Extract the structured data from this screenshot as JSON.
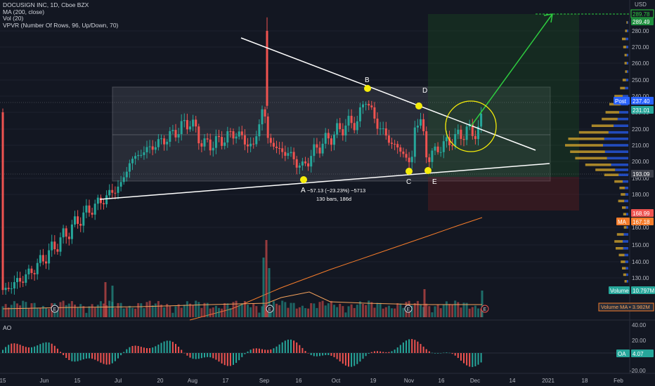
{
  "legend": {
    "title": "DOCUSIGN INC, 1D, Cboe BZX",
    "ma": "MA (200, close)",
    "vol": "Vol (20)",
    "vpvr": "VPVR (Number Of Rows, 96, Up/Down, 70)"
  },
  "currency": "USD",
  "ao_title": "AO",
  "annotations": {
    "A": "A",
    "B": "B",
    "C": "C",
    "D": "D",
    "E": "E",
    "measure_line1": "−57.13 (−23.23%) −5713",
    "measure_line2": "130 bars, 186d"
  },
  "badges": {
    "target": "289.78",
    "target2": "289.49",
    "post_label": "Post",
    "post_value": "237.40",
    "last": "231.01",
    "support": "193.09",
    "low": "168.99",
    "ma_label": "MA",
    "ma_value": "167.18",
    "volume_label": "Volume",
    "volume_value": "10.797M",
    "volume_ma": "Volume MA • 3.982M",
    "ao_label": "OA",
    "ao_value": "4.07"
  },
  "chart_data": {
    "type": "candlestick",
    "title": "DOCUSIGN INC, 1D, Cboe BZX",
    "y_ticks": [
      "280.00",
      "270.00",
      "260.00",
      "250.00",
      "240.00",
      "230.00",
      "220.00",
      "210.00",
      "200.00",
      "190.00",
      "180.00",
      "160.00",
      "150.00",
      "140.00",
      "130.00"
    ],
    "y_tick_values": [
      280,
      270,
      260,
      250,
      240,
      230,
      220,
      210,
      200,
      190,
      180,
      160,
      150,
      140,
      130
    ],
    "ao_ticks": [
      "40.00",
      "20.00",
      "-20.00"
    ],
    "x_ticks": [
      "15",
      "Jun",
      "15",
      "Jul",
      "20",
      "Aug",
      "17",
      "Sep",
      "16",
      "Oct",
      "19",
      "Nov",
      "16",
      "Dec",
      "14",
      "2021",
      "18",
      "Feb"
    ],
    "earnings_marker": "E",
    "ylim": [
      120,
      290
    ],
    "colors": {
      "up": "#26a69a",
      "down": "#ef5350",
      "ma": "#f57c2b",
      "trend": "#ffffff",
      "arrow": "#2ecc40",
      "marker": "#f5ec0a"
    }
  },
  "colors": {
    "up": "#26a69a",
    "down": "#ef5350",
    "bg": "#131722",
    "grid": "#2a2e39",
    "axis_text": "#b2b5be"
  }
}
